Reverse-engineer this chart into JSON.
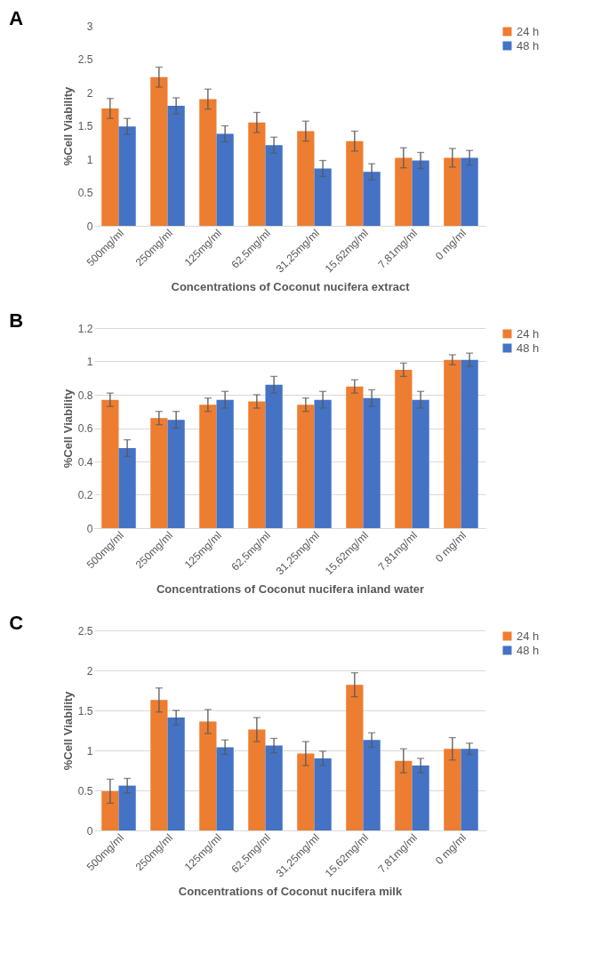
{
  "chart_data": [
    {
      "type": "bar",
      "title": "A",
      "xlabel": "Concentrations of Coconut nucifera extract",
      "ylabel": "%Cell Viability",
      "categories": [
        "500mg/ml",
        "250mg/ml",
        "125mg/ml",
        "62,5mg/ml",
        "31,25mg/ml",
        "15,62mg/ml",
        "7,81mg/ml",
        "0 mg/ml"
      ],
      "series": [
        {
          "name": "24 h",
          "color": "#ed7d31",
          "values": [
            1.76,
            2.23,
            1.9,
            1.55,
            1.42,
            1.27,
            1.02,
            1.02
          ],
          "errors": [
            0.15,
            0.15,
            0.15,
            0.15,
            0.15,
            0.15,
            0.15,
            0.14
          ]
        },
        {
          "name": "48 h",
          "color": "#4472c4",
          "values": [
            1.49,
            1.8,
            1.38,
            1.21,
            0.86,
            0.81,
            0.98,
            1.02
          ],
          "errors": [
            0.12,
            0.12,
            0.12,
            0.12,
            0.12,
            0.12,
            0.12,
            0.11
          ]
        }
      ],
      "ylim": [
        0,
        3
      ],
      "yticks": [
        0,
        0.5,
        1,
        1.5,
        2,
        2.5,
        3
      ],
      "grid": false,
      "legend": "right"
    },
    {
      "type": "bar",
      "title": "B",
      "xlabel": "Concentrations of Coconut nucifera inland water",
      "ylabel": "%Cell Viability",
      "categories": [
        "500mg/ml",
        "250mg/ml",
        "125mg/ml",
        "62,5mg/ml",
        "31,25mg/ml",
        "15,62mg/ml",
        "7,81mg/ml",
        "0 mg/ml"
      ],
      "series": [
        {
          "name": "24 h",
          "color": "#ed7d31",
          "values": [
            0.77,
            0.66,
            0.74,
            0.76,
            0.74,
            0.85,
            0.95,
            1.01
          ],
          "errors": [
            0.04,
            0.04,
            0.04,
            0.04,
            0.04,
            0.04,
            0.04,
            0.03
          ]
        },
        {
          "name": "48 h",
          "color": "#4472c4",
          "values": [
            0.48,
            0.65,
            0.77,
            0.86,
            0.77,
            0.78,
            0.77,
            1.01
          ],
          "errors": [
            0.05,
            0.05,
            0.05,
            0.05,
            0.05,
            0.05,
            0.05,
            0.04
          ]
        }
      ],
      "ylim": [
        0,
        1.2
      ],
      "yticks": [
        0,
        0.2,
        0.4,
        0.6,
        0.8,
        1,
        1.2
      ],
      "grid": "y",
      "legend": "right"
    },
    {
      "type": "bar",
      "title": "C",
      "xlabel": "Concentrations of Coconut nucifera milk",
      "ylabel": "%Cell Viability",
      "categories": [
        "500mg/ml",
        "250mg/ml",
        "125mg/ml",
        "62,5mg/ml",
        "31,25mg/ml",
        "15,62mg/ml",
        "7,81mg/ml",
        "0 mg/ml"
      ],
      "series": [
        {
          "name": "24 h",
          "color": "#ed7d31",
          "values": [
            0.49,
            1.63,
            1.36,
            1.26,
            0.96,
            1.82,
            0.87,
            1.02
          ],
          "errors": [
            0.15,
            0.15,
            0.15,
            0.15,
            0.15,
            0.15,
            0.15,
            0.14
          ]
        },
        {
          "name": "48 h",
          "color": "#4472c4",
          "values": [
            0.56,
            1.41,
            1.04,
            1.06,
            0.9,
            1.13,
            0.81,
            1.02
          ],
          "errors": [
            0.09,
            0.09,
            0.09,
            0.09,
            0.09,
            0.09,
            0.09,
            0.07
          ]
        }
      ],
      "ylim": [
        0,
        2.5
      ],
      "yticks": [
        0,
        0.5,
        1,
        1.5,
        2,
        2.5
      ],
      "grid": "y",
      "legend": "right"
    }
  ]
}
